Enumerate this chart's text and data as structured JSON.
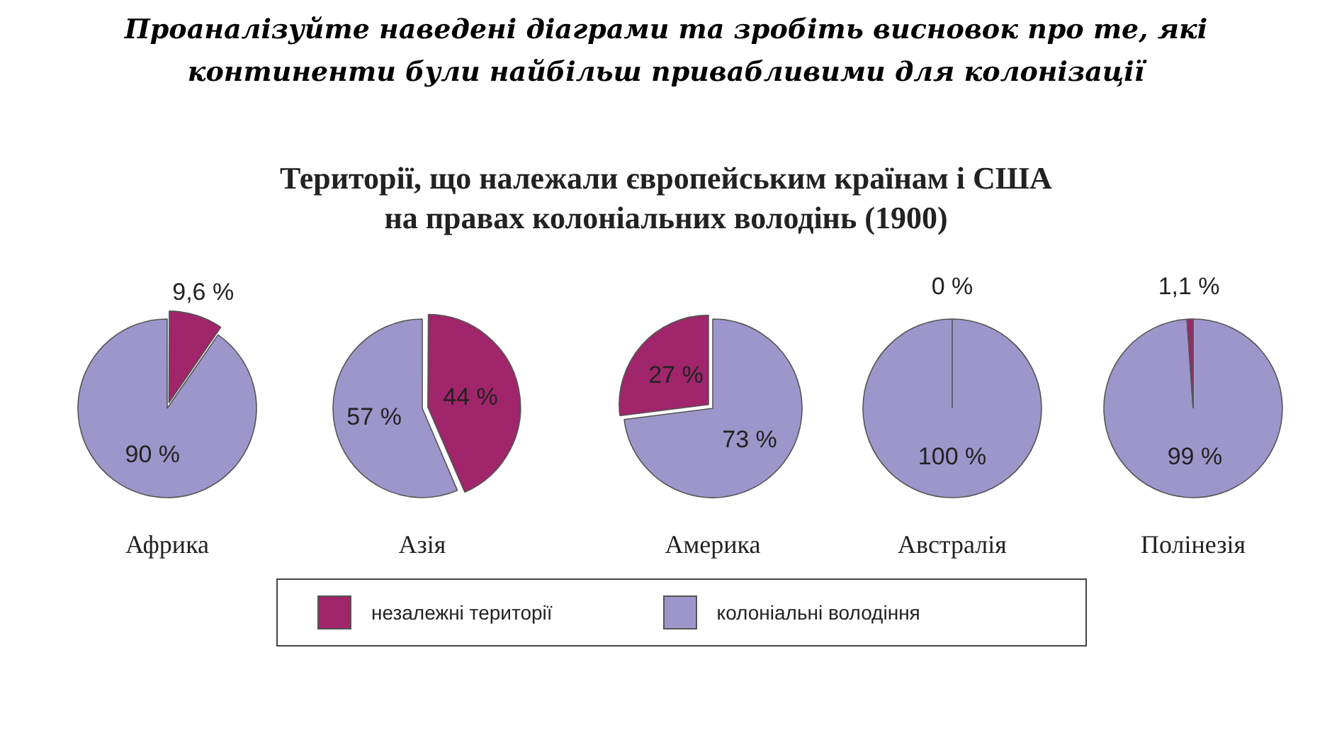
{
  "chart_data": [
    {
      "type": "pie",
      "xlabel": "Африка",
      "categories": [
        "незалежні території",
        "колоніальні володіння"
      ],
      "values": [
        9.6,
        90
      ],
      "colors": [
        "#a0256a",
        "#9d96ca"
      ],
      "value_labels": [
        "9,6 %",
        "90 %"
      ],
      "legend": "bottom"
    },
    {
      "type": "pie",
      "xlabel": "Азія",
      "categories": [
        null,
        null
      ],
      "values": [
        44,
        57
      ],
      "colors": [
        "#a0256a",
        "#9d96ca"
      ],
      "value_labels": [
        "44 %",
        "57 %"
      ]
    },
    {
      "type": "pie",
      "title": "Проаналізуйте наведені діаграми та зробіть висновок про те, які континенти були найбільш привабливими для колонізації",
      "subtitle": "Території, що належали європейським країнам і США\nна правах колоніальних володінь (1900)",
      "xlabel": "Америка",
      "categories": [
        null,
        null
      ],
      "values": [
        73,
        27
      ],
      "colors": [
        "#9d96ca",
        "#a0256a"
      ],
      "value_labels": [
        "73 %",
        "27 %"
      ]
    },
    {
      "type": "pie",
      "xlabel": "Австралія",
      "categories": [
        null,
        null
      ],
      "values": [
        0,
        100
      ],
      "colors": [
        "#a0256a",
        "#9d96ca"
      ],
      "value_labels": [
        "0 %",
        "100 %"
      ]
    },
    {
      "type": "pie",
      "xlabel": "Полінезія",
      "categories": [
        null,
        null
      ],
      "values": [
        99,
        1.1
      ],
      "colors": [
        "#9d96ca",
        "#a0256a"
      ],
      "value_labels": [
        "99 %",
        "1,1 %"
      ]
    }
  ]
}
